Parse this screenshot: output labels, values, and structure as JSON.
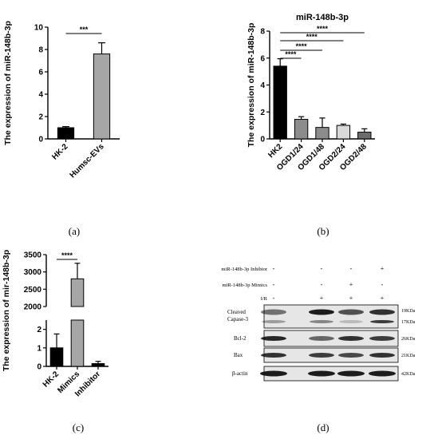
{
  "chart_data": [
    {
      "type": "bar",
      "panel_label": "(a)",
      "title": "",
      "ylabel": "The expression of miR-148b-3p",
      "xlabel": "",
      "ylim": [
        0,
        10
      ],
      "yticks": [
        "0",
        "2",
        "4",
        "6",
        "8",
        "10"
      ],
      "categories": [
        "HK-2",
        "Humsc-EVs"
      ],
      "values": [
        1.0,
        7.6
      ],
      "errors": [
        0.1,
        1.0
      ],
      "colors": [
        "#000000",
        "#a6a6a6"
      ],
      "significance": [
        {
          "from": 0,
          "to": 1,
          "label": "***"
        }
      ]
    },
    {
      "type": "bar",
      "panel_label": "(b)",
      "title": "miR-148b-3p",
      "ylabel": "The expression of miR-148b-3p",
      "xlabel": "",
      "ylim": [
        0,
        8
      ],
      "yticks": [
        "0",
        "2",
        "4",
        "6",
        "8"
      ],
      "categories": [
        "HK2",
        "OGD1/24",
        "OGD1/48",
        "OGD2/24",
        "OGD2/48"
      ],
      "values": [
        5.4,
        1.45,
        0.85,
        1.0,
        0.5
      ],
      "errors": [
        0.55,
        0.2,
        0.7,
        0.1,
        0.25
      ],
      "colors": [
        "#000000",
        "#8c8c8c",
        "#8c8c8c",
        "#d9d9d9",
        "#6b6b6b"
      ],
      "significance": [
        {
          "from": 0,
          "to": 1,
          "label": "****"
        },
        {
          "from": 0,
          "to": 2,
          "label": "****"
        },
        {
          "from": 0,
          "to": 3,
          "label": "****"
        },
        {
          "from": 0,
          "to": 4,
          "label": "****"
        }
      ]
    },
    {
      "type": "bar",
      "panel_label": "(c)",
      "title": "",
      "ylabel": "The expression of mir-148b-3p",
      "xlabel": "",
      "axis_break": true,
      "ylim_lower": [
        0,
        2.5
      ],
      "ylim_upper": [
        2000,
        3500
      ],
      "yticks_lower": [
        "0",
        "1",
        "2"
      ],
      "yticks_upper": [
        "2000",
        "2500",
        "3000",
        "3500"
      ],
      "categories": [
        "HK-2",
        "Mimics",
        "Inhibitor"
      ],
      "values": [
        1.0,
        2800,
        0.15
      ],
      "errors": [
        0.75,
        450,
        0.12
      ],
      "colors": [
        "#000000",
        "#a6a6a6",
        "#000000"
      ],
      "significance": [
        {
          "from": 0,
          "to": 1,
          "label": "****"
        }
      ]
    },
    {
      "type": "table",
      "panel_label": "(d)",
      "treatments": [
        {
          "label": "miR-148b-3p Inhibtor",
          "values": [
            "-",
            "-",
            "-",
            "+"
          ]
        },
        {
          "label": "miR-148b-3p Mimics",
          "values": [
            "-",
            "-",
            "+",
            "-"
          ]
        },
        {
          "label": "I/R",
          "values": [
            "-",
            "+",
            "+",
            "+"
          ]
        }
      ],
      "blots": [
        {
          "label": "Cleaved Capase-3",
          "sizes": [
            "19KDa",
            "17KDa"
          ]
        },
        {
          "label": "Bcl-2",
          "sizes": [
            "26KDa"
          ]
        },
        {
          "label": "Bax",
          "sizes": [
            "21KDa"
          ]
        },
        {
          "label": "β-actin",
          "sizes": [
            "42KDa"
          ]
        }
      ]
    }
  ]
}
